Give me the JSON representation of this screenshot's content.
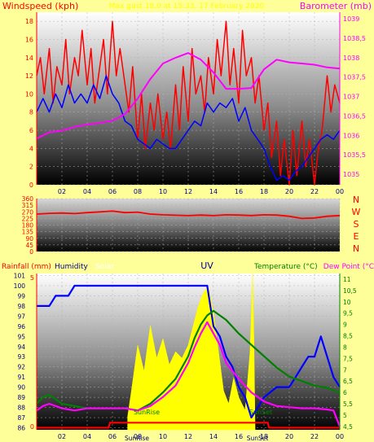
{
  "header": {
    "windspeed_label": "Windspeed (kph)",
    "title": "Max gust 18,0 at 15:33, 17 February 2020",
    "barometer_label": "Barometer (mb)"
  },
  "bottom_header": {
    "rainfall": "Rainfall (mm)",
    "humidity": "Humidity",
    "solar": "Solar",
    "uv": "UV",
    "temperature": "Temperature (°C)",
    "dewpoint": "Dew Point (°C"
  },
  "markers": {
    "sunrise": "SunRise",
    "sunset": "SunSet"
  },
  "colors": {
    "wind_gust": "#ff0000",
    "wind_avg": "#0000ff",
    "barometer": "#ff00ff",
    "direction": "#ff0000",
    "humidity": "#0000ff",
    "temperature": "#008000",
    "dewpoint": "#ff00ff",
    "solar": "#ffff00",
    "rainfall": "#ff0000",
    "label_red": "#ff0000",
    "label_magenta": "#ff00ff",
    "label_navy": "#000080",
    "label_green": "#008000",
    "label_cyan": "#00a0a0",
    "solar_label": "#ffffff"
  },
  "chart_data": [
    {
      "type": "line",
      "name": "wind-barometer",
      "x_ticks": [
        "02",
        "04",
        "06",
        "08",
        "10",
        "12",
        "14",
        "16",
        "18",
        "20",
        "22",
        "00"
      ],
      "yleft_ticks": [
        "0",
        "2",
        "4",
        "6",
        "8",
        "10",
        "12",
        "14",
        "16",
        "18"
      ],
      "yleft_lim": [
        0,
        19
      ],
      "yright_ticks": [
        "1035",
        "1035,5",
        "1036",
        "1036,5",
        "1037",
        "1037,5",
        "1038",
        "1038,5",
        "1039"
      ],
      "yright_lim": [
        1034.73,
        1039.17
      ],
      "series": [
        {
          "axis": "left",
          "color_key": "wind_gust",
          "x": [
            0,
            0.3,
            0.6,
            1,
            1.3,
            1.6,
            2,
            2.3,
            2.6,
            3,
            3.3,
            3.6,
            4,
            4.3,
            4.6,
            5,
            5.3,
            5.6,
            6,
            6.3,
            6.6,
            7,
            7.3,
            7.6,
            8,
            8.3,
            8.6,
            9,
            9.3,
            9.6,
            10,
            10.3,
            10.6,
            11,
            11.3,
            11.6,
            12,
            12.3,
            12.6,
            13,
            13.3,
            13.6,
            14,
            14.3,
            14.6,
            15,
            15.3,
            15.6,
            16,
            16.3,
            16.6,
            17,
            17.3,
            17.6,
            18,
            18.3,
            18.6,
            19,
            19.3,
            19.6,
            20,
            20.3,
            20.6,
            21,
            21.3,
            21.6,
            22,
            22.3,
            22.6,
            23,
            23.3,
            23.6,
            24
          ],
          "y": [
            12,
            14,
            10,
            15,
            9,
            13,
            11,
            16,
            10,
            14,
            12,
            17,
            11,
            15,
            9,
            13,
            16,
            10,
            18,
            12,
            15,
            11,
            8,
            13,
            5,
            10,
            4,
            9,
            6,
            10,
            5,
            8,
            4,
            11,
            6,
            13,
            7,
            15,
            10,
            12,
            8,
            14,
            10,
            16,
            12,
            18,
            11,
            15,
            9,
            17,
            12,
            14,
            9,
            12,
            6,
            9,
            3,
            7,
            1,
            5,
            0,
            6,
            1,
            7,
            2,
            5,
            0,
            4,
            6,
            12,
            8,
            11,
            9
          ]
        },
        {
          "axis": "left",
          "color_key": "wind_avg",
          "x": [
            0,
            0.5,
            1,
            1.5,
            2,
            2.5,
            3,
            3.5,
            4,
            4.5,
            5,
            5.5,
            6,
            6.5,
            7,
            7.5,
            8,
            8.5,
            9,
            9.5,
            10,
            10.5,
            11,
            11.5,
            12,
            12.5,
            13,
            13.5,
            14,
            14.5,
            15,
            15.5,
            16,
            16.5,
            17,
            17.5,
            18,
            18.5,
            19,
            19.5,
            20,
            20.5,
            21,
            21.5,
            22,
            22.5,
            23,
            23.5,
            24
          ],
          "y": [
            8,
            9.5,
            8,
            10,
            8.5,
            11,
            9,
            10,
            9,
            11,
            9.5,
            12,
            10,
            9,
            7,
            6.5,
            5,
            4.5,
            4,
            5,
            4.5,
            4,
            4,
            5,
            6,
            7,
            6.5,
            9,
            8,
            9,
            8.5,
            9.5,
            7,
            8.5,
            6,
            5,
            4,
            2,
            0.5,
            1,
            0.5,
            1.5,
            2,
            3,
            4,
            5,
            5.5,
            5,
            6
          ]
        },
        {
          "axis": "right",
          "color_key": "barometer",
          "x": [
            0,
            1,
            2,
            3,
            4,
            5,
            6,
            7,
            8,
            9,
            10,
            11,
            12,
            13,
            14,
            15,
            16,
            17,
            18,
            19,
            20,
            21,
            22,
            23,
            24
          ],
          "y": [
            1035.92,
            1036.08,
            1036.12,
            1036.22,
            1036.28,
            1036.32,
            1036.38,
            1036.55,
            1036.95,
            1037.45,
            1037.85,
            1038.0,
            1038.12,
            1037.95,
            1037.62,
            1037.2,
            1037.2,
            1037.22,
            1037.7,
            1037.95,
            1037.88,
            1037.85,
            1037.82,
            1037.75,
            1037.72
          ]
        }
      ]
    },
    {
      "type": "line",
      "name": "wind-direction",
      "x_ticks": [
        "02",
        "04",
        "06",
        "08",
        "10",
        "12",
        "14",
        "16",
        "18",
        "20",
        "22",
        "00"
      ],
      "y_ticks": [
        "0",
        "45",
        "90",
        "135",
        "180",
        "225",
        "270",
        "315",
        "360"
      ],
      "ylim": [
        0,
        360
      ],
      "direction_labels": [
        "N",
        "W",
        "S",
        "E",
        "N"
      ],
      "series": [
        {
          "color_key": "direction",
          "x": [
            0,
            1,
            2,
            3,
            4,
            5,
            6,
            7,
            8,
            9,
            10,
            11,
            12,
            13,
            14,
            15,
            16,
            17,
            18,
            19,
            20,
            21,
            22,
            23,
            24
          ],
          "y": [
            255,
            260,
            262,
            258,
            265,
            270,
            275,
            265,
            268,
            255,
            250,
            247,
            244,
            248,
            244,
            250,
            248,
            245,
            250,
            248,
            240,
            225,
            228,
            240,
            245
          ]
        }
      ]
    },
    {
      "type": "line",
      "name": "rain-humidity-temp",
      "x_ticks": [
        "02",
        "04",
        "06",
        "08",
        "10",
        "12",
        "14",
        "16",
        "18",
        "20",
        "22",
        "00"
      ],
      "yleft_ticks": [
        "86",
        "87",
        "88",
        "89",
        "90",
        "91",
        "92",
        "93",
        "94",
        "95",
        "96",
        "97",
        "98",
        "99",
        "100",
        "101"
      ],
      "yleft_lim": [
        85.8,
        101.2
      ],
      "yright_ticks": [
        "4,5",
        "5",
        "5,5",
        "6",
        "6,5",
        "7",
        "7,5",
        "8",
        "8,5",
        "9",
        "9,5",
        "10",
        "10,5",
        "11"
      ],
      "yright_lim": [
        4.35,
        11.25
      ],
      "rain_scale": {
        "ticks": [
          "0",
          "5"
        ],
        "lim": [
          0,
          5
        ]
      },
      "uv_lim": [
        0,
        12
      ],
      "sunrise_x": 7.2,
      "sunset_x": 17.3,
      "series": [
        {
          "axis": "left",
          "color_key": "humidity",
          "x": [
            0,
            0.4,
            1,
            1.5,
            2.5,
            3,
            4,
            5,
            6,
            7,
            8,
            9,
            10,
            11,
            12,
            12.5,
            13,
            13.5,
            14,
            14.5,
            15,
            15.5,
            16,
            16.5,
            17,
            17.5,
            18,
            19,
            20,
            20.5,
            21,
            21.5,
            22,
            22.5,
            23,
            23.5,
            24
          ],
          "y": [
            98,
            98,
            98,
            99,
            99,
            100,
            100,
            100,
            100,
            100,
            100,
            100,
            100,
            100,
            100,
            100,
            100,
            100,
            96,
            95,
            93,
            92,
            90,
            89,
            87,
            88,
            89,
            90,
            90,
            91,
            92,
            93,
            93,
            95,
            93,
            91,
            90
          ]
        },
        {
          "axis": "right",
          "color_key": "temperature",
          "x": [
            0,
            0.5,
            1,
            2,
            3,
            4,
            5,
            6,
            7,
            8,
            9,
            10,
            11,
            12,
            12.5,
            13,
            13.5,
            14,
            14.5,
            15,
            16,
            17,
            18,
            19,
            20,
            21,
            22,
            23,
            24
          ],
          "y": [
            5.5,
            5.8,
            5.9,
            5.5,
            5.4,
            5.3,
            5.3,
            5.3,
            5.3,
            5.2,
            5.5,
            6.0,
            6.6,
            7.6,
            8.4,
            9.0,
            9.4,
            9.6,
            9.4,
            9.2,
            8.6,
            8.1,
            7.6,
            7.1,
            6.7,
            6.5,
            6.3,
            6.2,
            6.0
          ]
        },
        {
          "axis": "right",
          "color_key": "dewpoint",
          "x": [
            0,
            0.5,
            1,
            2,
            3,
            4,
            5,
            6,
            7,
            8,
            9,
            10,
            11,
            12,
            12.5,
            13,
            13.5,
            14,
            14.5,
            15,
            16,
            17,
            18,
            19,
            20,
            21,
            22,
            23,
            23.5,
            24
          ],
          "y": [
            5.2,
            5.4,
            5.5,
            5.3,
            5.2,
            5.3,
            5.3,
            5.3,
            5.3,
            5.2,
            5.4,
            5.8,
            6.3,
            7.3,
            8.0,
            8.6,
            9.1,
            8.6,
            8.1,
            7.3,
            6.6,
            6.0,
            5.6,
            5.4,
            5.35,
            5.3,
            5.3,
            5.25,
            5.2,
            4.5
          ]
        },
        {
          "axis": "left",
          "color_key": "rainfall",
          "x": [
            0,
            5.7,
            5.8,
            18.3,
            18.4,
            24
          ],
          "y": [
            86,
            86,
            86.5,
            86.5,
            86,
            86
          ]
        },
        {
          "axis": "uv",
          "color_key": "solar",
          "fill": true,
          "x": [
            7.2,
            7.5,
            8,
            8.5,
            9,
            9.5,
            10,
            10.5,
            11,
            11.5,
            12,
            12.4,
            12.8,
            13.2,
            13.6,
            14,
            14.4,
            14.8,
            15.2,
            15.6,
            16,
            16.5,
            16.9,
            17.1,
            17.2,
            17.3
          ],
          "y": [
            1.0,
            3.0,
            6.5,
            4.5,
            8.0,
            5.5,
            7.0,
            5.0,
            6.0,
            5.5,
            6.5,
            8.0,
            9.5,
            10.5,
            11.0,
            9.0,
            6.0,
            3.0,
            2.0,
            4.0,
            2.5,
            1.5,
            6.0,
            12.0,
            7.0,
            0
          ]
        }
      ]
    }
  ]
}
